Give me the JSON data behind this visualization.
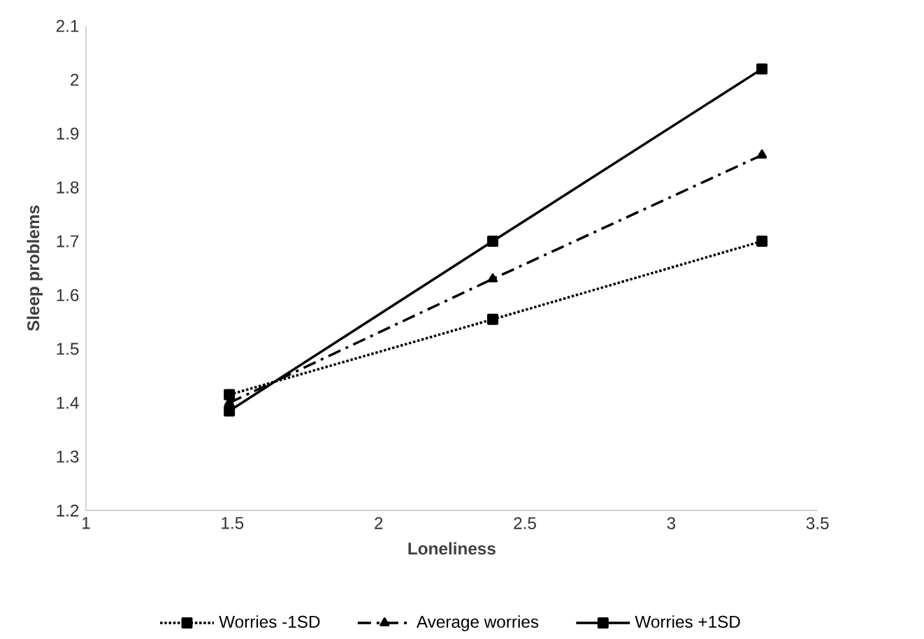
{
  "chart_data": {
    "type": "line",
    "xlabel": "Loneliness",
    "ylabel": "Sleep problems",
    "xlim": [
      1,
      3.5
    ],
    "xticks": [
      1,
      1.5,
      2,
      2.5,
      3,
      3.5
    ],
    "ylim": [
      1.2,
      2.1
    ],
    "yticks": [
      1.2,
      1.3,
      1.4,
      1.5,
      1.6,
      1.7,
      1.8,
      1.9,
      2,
      2.1
    ],
    "grid": false,
    "legend": "bottom",
    "x": [
      1.49,
      2.39,
      3.31
    ],
    "series": [
      {
        "name": "Worries -1SD",
        "color": "#000000",
        "values": [
          1.415,
          1.555,
          1.7
        ],
        "marker": "square",
        "line_style": "dotted"
      },
      {
        "name": "Average worries",
        "color": "#000000",
        "values": [
          1.4,
          1.63,
          1.86
        ],
        "marker": "triangle",
        "line_style": "dashed"
      },
      {
        "name": "Worries +1SD",
        "color": "#000000",
        "values": [
          1.385,
          1.7,
          2.02
        ],
        "marker": "square",
        "line_style": "solid"
      }
    ]
  }
}
